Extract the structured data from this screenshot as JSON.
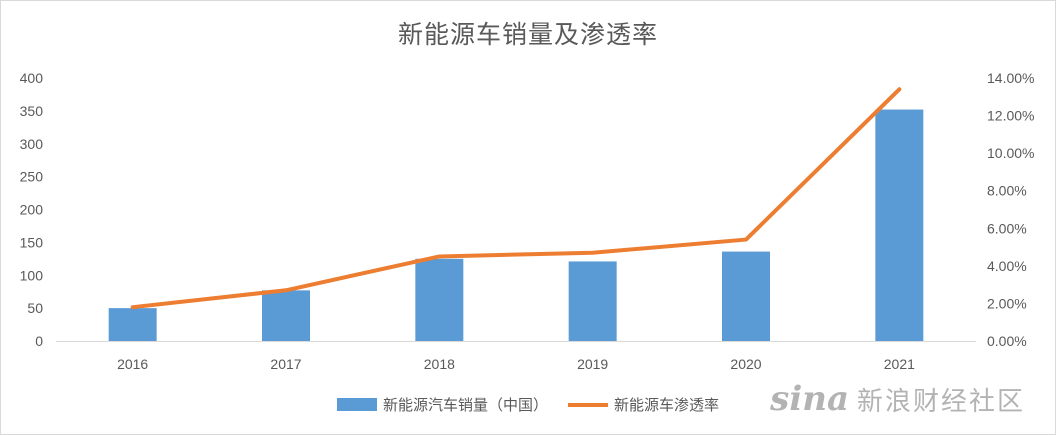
{
  "chart_data": {
    "type": "bar",
    "title": "新能源车销量及渗透率",
    "categories": [
      "2016",
      "2017",
      "2018",
      "2019",
      "2020",
      "2021"
    ],
    "series": [
      {
        "name": "新能源汽车销量（中国）",
        "type": "bar",
        "axis": "left",
        "color": "#5b9bd5",
        "values": [
          50,
          77,
          125,
          121,
          136,
          352
        ]
      },
      {
        "name": "新能源车渗透率",
        "type": "line",
        "axis": "right",
        "color": "#ed7d31",
        "values": [
          1.8,
          2.7,
          4.5,
          4.7,
          5.4,
          13.4
        ]
      }
    ],
    "y_left": {
      "ylim": [
        0,
        400
      ],
      "ticks": [
        "0",
        "50",
        "100",
        "150",
        "200",
        "250",
        "300",
        "350",
        "400"
      ]
    },
    "y_right": {
      "ylim": [
        0,
        14
      ],
      "unit": "%",
      "ticks": [
        "0.00%",
        "2.00%",
        "4.00%",
        "6.00%",
        "8.00%",
        "10.00%",
        "12.00%",
        "14.00%"
      ]
    },
    "x_tick_labels": [
      "2016",
      "2017",
      "2018",
      "2019",
      "2020",
      "2021"
    ],
    "grid": false,
    "legend_position": "bottom"
  },
  "watermark": {
    "logo": "sina",
    "text": "新浪财经社区"
  }
}
